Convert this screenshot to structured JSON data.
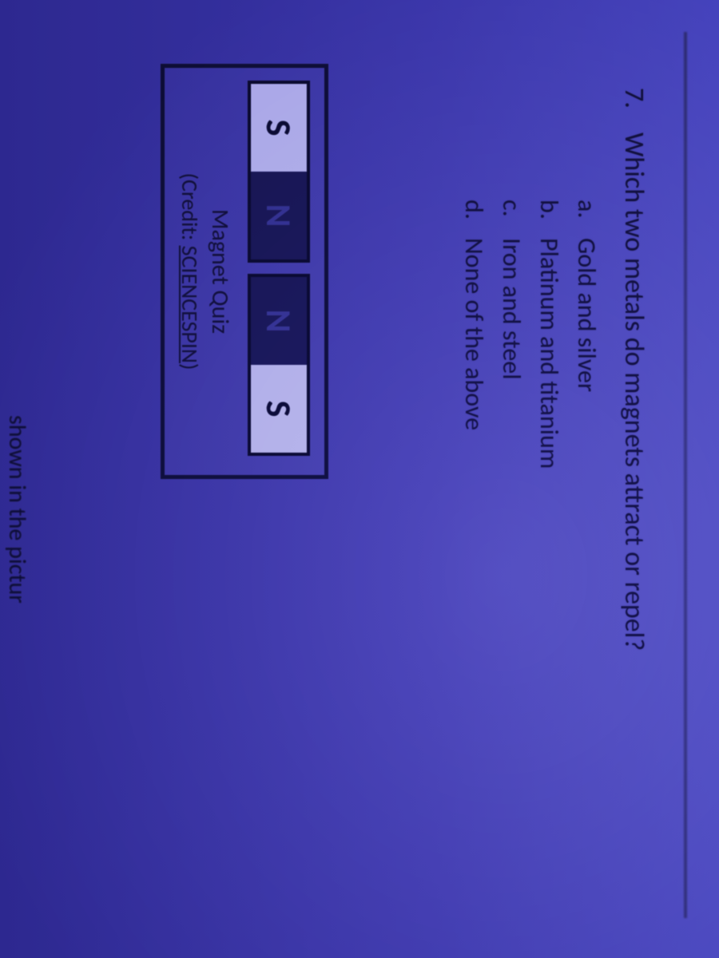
{
  "question": {
    "number": "7.",
    "text": "Which two metals do magnets attract or repel?",
    "options": [
      {
        "letter": "a.",
        "text": "Gold and silver"
      },
      {
        "letter": "b.",
        "text": "Platinum and titanium"
      },
      {
        "letter": "c.",
        "text": "Iron and steel"
      },
      {
        "letter": "d.",
        "text": "None of the above"
      }
    ]
  },
  "figure": {
    "magnets": [
      {
        "left": {
          "label": "S",
          "shade": "light"
        },
        "right": {
          "label": "N",
          "shade": "dark"
        }
      },
      {
        "left": {
          "label": "N",
          "shade": "dark"
        },
        "right": {
          "label": "S",
          "shade": "light"
        }
      }
    ],
    "caption": "Magnet Quiz",
    "credit_prefix": "(Credit: ",
    "credit_link": "SCIENCESPIN",
    "credit_suffix": ")"
  },
  "cutoff_text": "shown in the pictur",
  "colors": {
    "bg_top": "#5a57c9",
    "bg_bottom": "#3c35a6",
    "ink": "#14124a",
    "magnet_border": "#0c0c3b",
    "pole_light": "#b9b7ec",
    "pole_dark": "#1d1b66"
  }
}
